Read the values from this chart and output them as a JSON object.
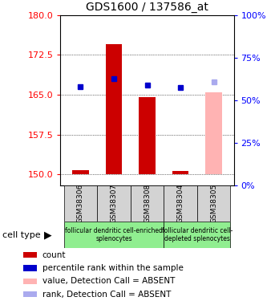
{
  "title": "GDS1600 / 137586_at",
  "samples": [
    "GSM38306",
    "GSM38307",
    "GSM38308",
    "GSM38304",
    "GSM38305"
  ],
  "ylim_left": [
    148,
    180
  ],
  "ylim_right": [
    0,
    100
  ],
  "yticks_left": [
    150,
    157.5,
    165,
    172.5,
    180
  ],
  "yticks_right": [
    0,
    25,
    50,
    75,
    100
  ],
  "count_values": [
    150.8,
    174.5,
    164.5,
    150.7,
    null
  ],
  "rank_values": [
    166.5,
    168.0,
    166.8,
    166.3,
    null
  ],
  "absent_count": [
    null,
    null,
    null,
    null,
    165.5
  ],
  "absent_rank": [
    null,
    null,
    null,
    null,
    167.5
  ],
  "bar_color_present": "#cc0000",
  "bar_color_absent": "#ffb3b3",
  "dot_color_present": "#0000cc",
  "dot_color_absent": "#aaaaee",
  "bar_base": 150,
  "bar_width": 0.5,
  "group1_samples": [
    0,
    1,
    2
  ],
  "group2_samples": [
    3,
    4
  ],
  "group1_label": "follicular dendritic cell-enriched\nsplenocytes",
  "group2_label": "follicular dendritic cell-\ndepleted splenocytes",
  "group1_color": "#90ee90",
  "group2_color": "#90ee90",
  "sample_box_color": "#d3d3d3",
  "cell_type_label": "cell type",
  "legend_items": [
    {
      "label": "count",
      "color": "#cc0000"
    },
    {
      "label": "percentile rank within the sample",
      "color": "#0000cc"
    },
    {
      "label": "value, Detection Call = ABSENT",
      "color": "#ffb3b3"
    },
    {
      "label": "rank, Detection Call = ABSENT",
      "color": "#aaaaee"
    }
  ]
}
